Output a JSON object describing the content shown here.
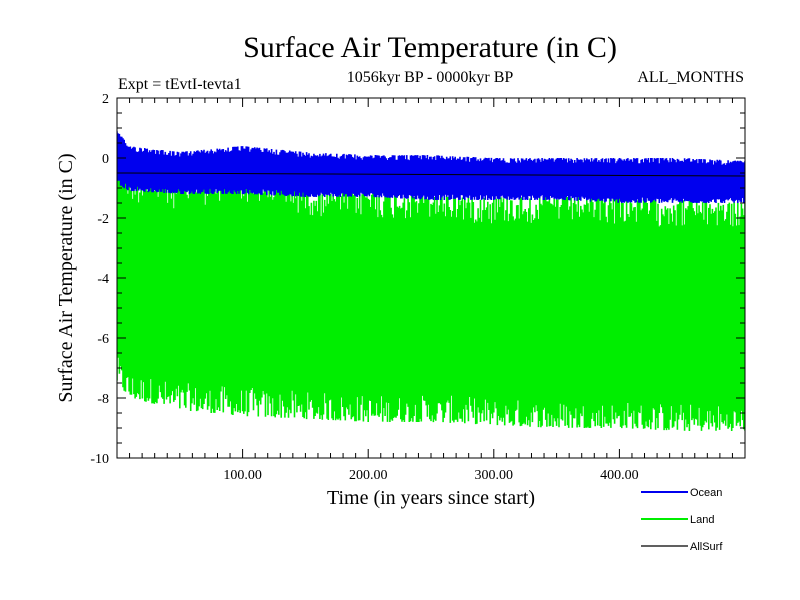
{
  "chart_data": {
    "type": "line",
    "title": "Surface Air Temperature (in C)",
    "subtitle": "1056kyr BP - 0000kyr BP",
    "left_annotation": "Expt = tEvtI-tevta1",
    "right_annotation": "ALL_MONTHS",
    "xlabel": "Time (in years since start)",
    "ylabel": "Surface Air Temperature (in C)",
    "xlim": [
      0,
      500
    ],
    "ylim": [
      -10,
      2
    ],
    "x_ticks": [
      100,
      200,
      300,
      400
    ],
    "x_tick_labels": [
      "100.00",
      "200.00",
      "300.00",
      "400.00"
    ],
    "y_ticks": [
      -10,
      -8,
      -6,
      -4,
      -2,
      0,
      2
    ],
    "y_tick_labels": [
      "-10",
      "-8",
      "-6",
      "-4",
      "-2",
      "0",
      "2"
    ],
    "legend_position": "bottom-right",
    "series": [
      {
        "name": "Land",
        "color": "#00ee00",
        "kind": "band",
        "x": [
          0,
          10,
          50,
          100,
          150,
          200,
          250,
          300,
          350,
          400,
          450,
          500
        ],
        "upper": [
          0.0,
          -0.6,
          -0.8,
          -0.5,
          -1.0,
          -1.1,
          -1.2,
          -1.3,
          -1.3,
          -1.3,
          -1.4,
          -1.5
        ],
        "lower": [
          -7.5,
          -8.0,
          -8.4,
          -8.6,
          -8.7,
          -8.8,
          -8.8,
          -8.9,
          -9.0,
          -9.0,
          -9.1,
          -9.1
        ]
      },
      {
        "name": "Ocean",
        "color": "#0000ee",
        "kind": "band",
        "x": [
          0,
          10,
          50,
          100,
          150,
          200,
          250,
          300,
          350,
          400,
          450,
          500
        ],
        "upper": [
          0.9,
          0.4,
          0.2,
          0.4,
          0.2,
          0.1,
          0.1,
          0.0,
          0.0,
          0.0,
          0.0,
          -0.1
        ],
        "lower": [
          -0.9,
          -1.1,
          -1.2,
          -1.2,
          -1.3,
          -1.3,
          -1.4,
          -1.4,
          -1.4,
          -1.5,
          -1.5,
          -1.5
        ]
      },
      {
        "name": "AllSurf",
        "color": "#000000",
        "kind": "line",
        "x": [
          0,
          500
        ],
        "values": [
          -0.5,
          -0.6
        ]
      }
    ]
  }
}
